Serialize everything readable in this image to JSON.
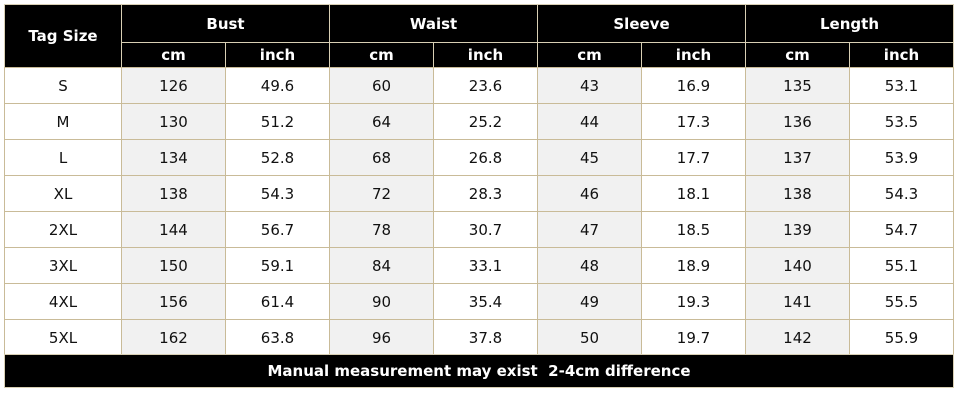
{
  "table": {
    "corner": "Tag Size",
    "groups": [
      "Bust",
      "Waist",
      "Sleeve",
      "Length"
    ],
    "units": [
      "cm",
      "inch",
      "cm",
      "inch",
      "cm",
      "inch",
      "cm",
      "inch"
    ],
    "rows": [
      [
        "S",
        126,
        49.6,
        60,
        23.6,
        43,
        16.9,
        135,
        53.1
      ],
      [
        "M",
        130,
        51.2,
        64,
        25.2,
        44,
        17.3,
        136,
        53.5
      ],
      [
        "L",
        134,
        52.8,
        68,
        26.8,
        45,
        17.7,
        137,
        53.9
      ],
      [
        "XL",
        138,
        54.3,
        72,
        28.3,
        46,
        18.1,
        138,
        54.3
      ],
      [
        "2XL",
        144,
        56.7,
        78,
        30.7,
        47,
        18.5,
        139,
        54.7
      ],
      [
        "3XL",
        150,
        59.1,
        84,
        33.1,
        48,
        18.9,
        140,
        55.1
      ],
      [
        "4XL",
        156,
        61.4,
        90,
        35.4,
        49,
        19.3,
        141,
        55.5
      ],
      [
        "5XL",
        162,
        63.8,
        96,
        37.8,
        50,
        19.7,
        142,
        55.9
      ]
    ],
    "footer": "Manual measurement may exist  2-4cm difference"
  }
}
